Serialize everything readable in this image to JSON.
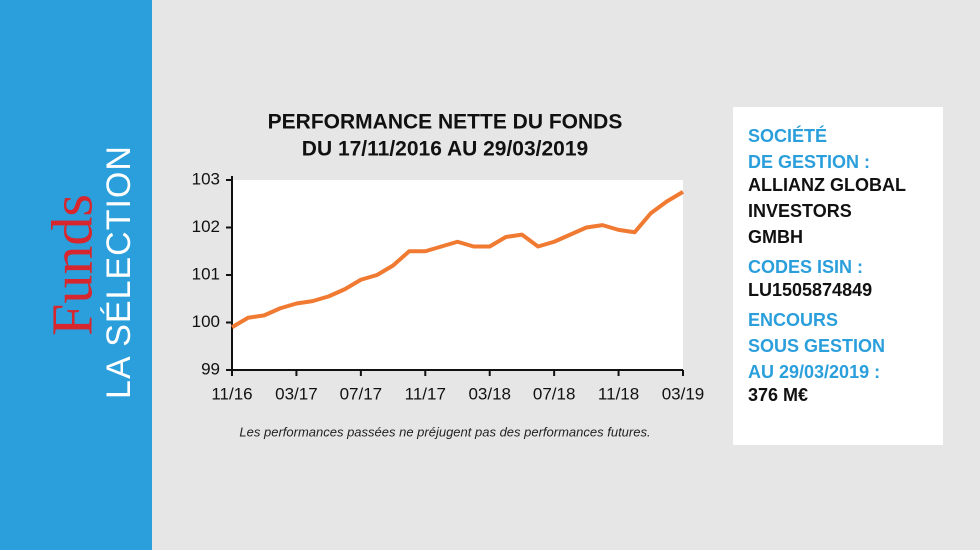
{
  "sidebar": {
    "brand": "Funds",
    "section": "LA SÉLECTION"
  },
  "chart_data": {
    "type": "line",
    "title": "PERFORMANCE NETTE DU FONDS",
    "subtitle": "DU 17/11/2016 AU 29/03/2019",
    "x": [
      "11/16",
      "12/16",
      "01/17",
      "02/17",
      "03/17",
      "04/17",
      "05/17",
      "06/17",
      "07/17",
      "08/17",
      "09/17",
      "10/17",
      "11/17",
      "12/17",
      "01/18",
      "02/18",
      "03/18",
      "04/18",
      "05/18",
      "06/18",
      "07/18",
      "08/18",
      "09/18",
      "10/18",
      "11/18",
      "12/18",
      "01/19",
      "02/19",
      "03/19"
    ],
    "values": [
      99.9,
      100.1,
      100.15,
      100.3,
      100.4,
      100.45,
      100.55,
      100.7,
      100.9,
      101.0,
      101.2,
      101.5,
      101.5,
      101.6,
      101.7,
      101.6,
      101.6,
      101.8,
      101.85,
      101.6,
      101.7,
      101.85,
      102.0,
      102.05,
      101.95,
      101.9,
      102.3,
      102.55,
      102.75
    ],
    "color": "#f07a32",
    "ylim": [
      99,
      103
    ],
    "yticks": [
      99,
      100,
      101,
      102,
      103
    ],
    "xticks": [
      "11/16",
      "03/17",
      "07/17",
      "11/17",
      "03/18",
      "07/18",
      "11/18",
      "03/19"
    ],
    "note": "Les performances passées ne préjugent pas des performances futures."
  },
  "info": [
    {
      "label": [
        "SOCIÉTÉ",
        "DE GESTION :"
      ],
      "value": [
        "ALLIANZ GLOBAL",
        "INVESTORS",
        "GMBH"
      ]
    },
    {
      "label": [
        "CODES ISIN :"
      ],
      "value": [
        "LU1505874849"
      ]
    },
    {
      "label": [
        "ENCOURS",
        "SOUS GESTION",
        "AU 29/03/2019 :"
      ],
      "value": [
        "376 M€"
      ]
    }
  ]
}
